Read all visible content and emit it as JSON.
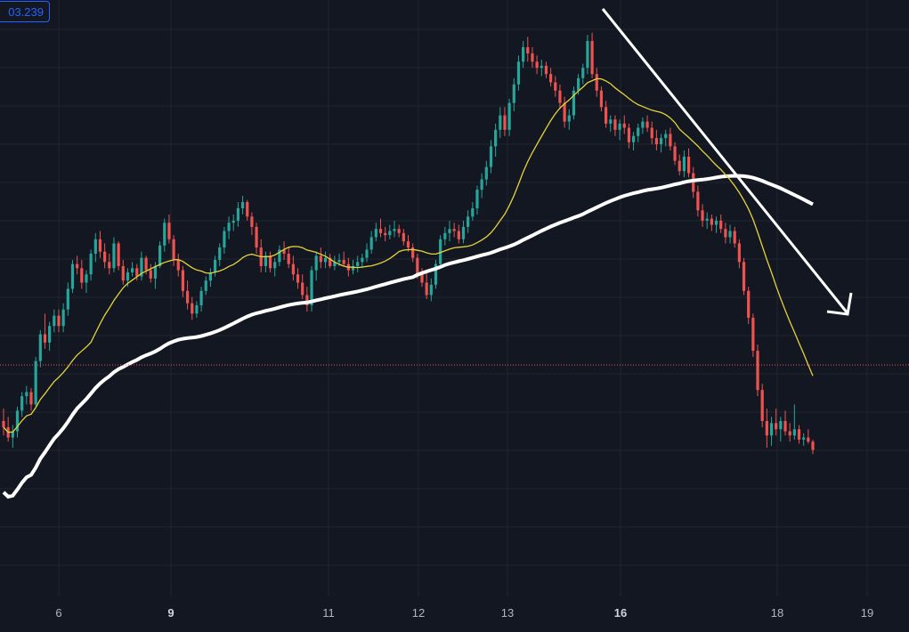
{
  "chart_data": {
    "type": "candlestick",
    "current_price_label": "03.239",
    "x_ticks": [
      {
        "label": "6",
        "bold": false
      },
      {
        "label": "9",
        "bold": true
      },
      {
        "label": "11",
        "bold": false
      },
      {
        "label": "12",
        "bold": false
      },
      {
        "label": "13",
        "bold": false
      },
      {
        "label": "16",
        "bold": true
      },
      {
        "label": "18",
        "bold": false
      },
      {
        "label": "19",
        "bold": false
      }
    ],
    "grid": true,
    "colors": {
      "background": "#131722",
      "grid": "#1f2430",
      "up": "#26a69a",
      "down": "#ef5350",
      "ma_fast": "#e6d23a",
      "ma_slow": "#ffffff",
      "drawing": "#ffffff",
      "price_line": "#ef5350",
      "price_tag": "#2962ff"
    },
    "series": [
      {
        "kind": "candles",
        "ohlc": [
          [
            7.2,
            7.8,
            6.5,
            6.9
          ],
          [
            6.9,
            7.4,
            6.2,
            6.4
          ],
          [
            6.4,
            7.0,
            5.9,
            6.7
          ],
          [
            6.7,
            7.9,
            6.4,
            7.7
          ],
          [
            7.7,
            8.6,
            7.4,
            8.4
          ],
          [
            8.4,
            8.9,
            8.0,
            8.6
          ],
          [
            8.6,
            8.8,
            7.7,
            8.0
          ],
          [
            8.0,
            10.3,
            7.9,
            10.1
          ],
          [
            10.1,
            11.6,
            9.8,
            11.4
          ],
          [
            11.4,
            12.4,
            10.7,
            11.0
          ],
          [
            11.0,
            12.0,
            10.6,
            11.8
          ],
          [
            11.8,
            12.6,
            11.5,
            12.3
          ],
          [
            12.3,
            12.6,
            11.5,
            11.8
          ],
          [
            11.8,
            12.9,
            11.5,
            12.6
          ],
          [
            12.6,
            13.9,
            12.3,
            13.6
          ],
          [
            13.6,
            15.0,
            13.4,
            14.8
          ],
          [
            14.8,
            15.2,
            14.3,
            14.6
          ],
          [
            14.6,
            15.0,
            13.6,
            13.9
          ],
          [
            13.9,
            14.5,
            13.4,
            14.3
          ],
          [
            14.3,
            15.5,
            14.0,
            15.3
          ],
          [
            15.3,
            16.3,
            14.9,
            16.0
          ],
          [
            16.0,
            16.4,
            15.1,
            15.4
          ],
          [
            15.4,
            15.8,
            14.6,
            14.9
          ],
          [
            14.9,
            15.3,
            14.3,
            14.6
          ],
          [
            14.6,
            16.1,
            14.4,
            15.8
          ],
          [
            15.8,
            15.9,
            14.5,
            14.7
          ],
          [
            14.7,
            15.0,
            13.8,
            14.0
          ],
          [
            14.0,
            14.6,
            13.7,
            14.4
          ],
          [
            14.4,
            14.9,
            14.2,
            14.6
          ],
          [
            14.6,
            14.8,
            14.0,
            14.2
          ],
          [
            14.2,
            15.4,
            14.0,
            15.1
          ],
          [
            15.1,
            15.2,
            14.3,
            14.5
          ],
          [
            14.5,
            14.8,
            13.9,
            14.1
          ],
          [
            14.1,
            14.9,
            13.6,
            14.7
          ],
          [
            14.7,
            15.9,
            14.6,
            15.7
          ],
          [
            15.7,
            17.0,
            15.4,
            16.8
          ],
          [
            16.8,
            17.2,
            15.8,
            16.0
          ],
          [
            16.0,
            16.2,
            14.7,
            15.0
          ],
          [
            15.0,
            15.3,
            14.2,
            14.5
          ],
          [
            14.5,
            14.7,
            13.2,
            13.5
          ],
          [
            13.5,
            14.0,
            12.6,
            12.9
          ],
          [
            12.9,
            13.2,
            12.1,
            12.4
          ],
          [
            12.4,
            13.0,
            12.2,
            12.8
          ],
          [
            12.8,
            13.7,
            12.5,
            13.5
          ],
          [
            13.5,
            14.2,
            13.3,
            14.0
          ],
          [
            14.0,
            14.6,
            13.7,
            14.4
          ],
          [
            14.4,
            15.2,
            14.2,
            15.0
          ],
          [
            15.0,
            15.8,
            14.7,
            15.6
          ],
          [
            15.6,
            16.6,
            15.3,
            16.4
          ],
          [
            16.4,
            17.1,
            16.0,
            16.8
          ],
          [
            16.8,
            17.2,
            16.4,
            16.9
          ],
          [
            16.9,
            17.8,
            16.6,
            17.5
          ],
          [
            17.5,
            18.1,
            17.2,
            17.8
          ],
          [
            17.8,
            17.9,
            16.9,
            17.1
          ],
          [
            17.1,
            17.3,
            16.2,
            16.6
          ],
          [
            16.6,
            16.8,
            15.3,
            15.6
          ],
          [
            15.6,
            16.0,
            14.4,
            14.7
          ],
          [
            14.7,
            15.4,
            14.4,
            15.2
          ],
          [
            15.2,
            15.4,
            14.4,
            14.6
          ],
          [
            14.6,
            15.1,
            14.2,
            14.9
          ],
          [
            14.9,
            15.7,
            14.7,
            15.5
          ],
          [
            15.5,
            15.9,
            15.0,
            15.3
          ],
          [
            15.3,
            15.6,
            14.6,
            14.8
          ],
          [
            14.8,
            15.2,
            14.0,
            14.3
          ],
          [
            14.3,
            14.6,
            13.6,
            13.9
          ],
          [
            13.9,
            14.3,
            13.1,
            13.3
          ],
          [
            13.3,
            13.7,
            12.5,
            12.8
          ],
          [
            12.8,
            14.7,
            12.5,
            14.5
          ],
          [
            14.5,
            15.4,
            14.0,
            15.2
          ],
          [
            15.2,
            15.6,
            14.6,
            14.9
          ],
          [
            14.9,
            15.4,
            14.6,
            15.1
          ],
          [
            15.1,
            15.3,
            14.6,
            14.7
          ],
          [
            14.7,
            15.2,
            14.5,
            14.9
          ],
          [
            14.9,
            15.3,
            14.7,
            15.0
          ],
          [
            15.0,
            15.4,
            14.7,
            14.8
          ],
          [
            14.8,
            15.1,
            14.2,
            14.5
          ],
          [
            14.5,
            15.0,
            14.3,
            14.7
          ],
          [
            14.7,
            15.2,
            14.4,
            14.9
          ],
          [
            14.9,
            15.3,
            14.6,
            15.1
          ],
          [
            15.1,
            15.8,
            14.9,
            15.5
          ],
          [
            15.5,
            16.4,
            15.3,
            16.1
          ],
          [
            16.1,
            16.8,
            15.9,
            16.5
          ],
          [
            16.5,
            17.0,
            16.1,
            16.3
          ],
          [
            16.3,
            16.6,
            15.9,
            16.2
          ],
          [
            16.2,
            16.7,
            16.0,
            16.4
          ],
          [
            16.4,
            16.9,
            16.1,
            16.5
          ],
          [
            16.5,
            16.7,
            16.1,
            16.3
          ],
          [
            16.3,
            16.5,
            15.7,
            15.9
          ],
          [
            15.9,
            16.2,
            15.4,
            15.6
          ],
          [
            15.6,
            15.8,
            14.9,
            15.1
          ],
          [
            15.1,
            15.3,
            14.1,
            14.3
          ],
          [
            14.3,
            14.6,
            13.7,
            13.9
          ],
          [
            13.9,
            14.4,
            13.1,
            13.3
          ],
          [
            13.3,
            14.1,
            13.0,
            13.8
          ],
          [
            13.8,
            15.0,
            13.6,
            14.8
          ],
          [
            14.8,
            16.2,
            14.6,
            16.0
          ],
          [
            16.0,
            16.6,
            15.7,
            16.3
          ],
          [
            16.3,
            16.9,
            15.9,
            16.5
          ],
          [
            16.5,
            16.8,
            16.1,
            16.4
          ],
          [
            16.4,
            16.7,
            15.8,
            16.0
          ],
          [
            16.0,
            16.9,
            15.8,
            16.6
          ],
          [
            16.6,
            17.4,
            16.3,
            17.1
          ],
          [
            17.1,
            17.8,
            16.9,
            17.5
          ],
          [
            17.5,
            18.6,
            17.2,
            18.4
          ],
          [
            18.4,
            19.2,
            18.0,
            18.9
          ],
          [
            18.9,
            19.8,
            18.6,
            19.5
          ],
          [
            19.5,
            20.8,
            19.2,
            20.5
          ],
          [
            20.5,
            21.6,
            20.0,
            21.3
          ],
          [
            21.3,
            22.4,
            20.9,
            22.0
          ],
          [
            22.0,
            22.4,
            21.0,
            21.3
          ],
          [
            21.3,
            22.8,
            21.0,
            22.6
          ],
          [
            22.6,
            23.8,
            22.2,
            23.5
          ],
          [
            23.5,
            24.9,
            23.2,
            24.6
          ],
          [
            24.6,
            25.6,
            24.3,
            25.3
          ],
          [
            25.3,
            25.8,
            24.6,
            25.0
          ],
          [
            25.0,
            25.3,
            24.3,
            24.6
          ],
          [
            24.6,
            24.9,
            24.0,
            24.3
          ],
          [
            24.3,
            24.7,
            23.9,
            24.4
          ],
          [
            24.4,
            24.6,
            23.8,
            24.0
          ],
          [
            24.0,
            24.3,
            23.4,
            23.6
          ],
          [
            23.6,
            23.9,
            22.9,
            23.2
          ],
          [
            23.2,
            23.5,
            22.3,
            22.6
          ],
          [
            22.6,
            22.9,
            21.4,
            21.7
          ],
          [
            21.7,
            22.3,
            21.3,
            22.0
          ],
          [
            22.0,
            23.4,
            21.8,
            23.2
          ],
          [
            23.2,
            24.0,
            23.0,
            23.8
          ],
          [
            23.8,
            24.5,
            23.5,
            24.3
          ],
          [
            24.3,
            25.9,
            24.0,
            25.6
          ],
          [
            25.6,
            26.0,
            23.8,
            24.0
          ],
          [
            24.0,
            24.3,
            22.9,
            23.2
          ],
          [
            23.2,
            23.4,
            22.2,
            22.4
          ],
          [
            22.4,
            22.7,
            21.4,
            21.6
          ],
          [
            21.6,
            22.0,
            21.2,
            21.8
          ],
          [
            21.8,
            22.0,
            21.0,
            21.3
          ],
          [
            21.3,
            21.8,
            20.8,
            21.6
          ],
          [
            21.6,
            22.0,
            21.1,
            21.4
          ],
          [
            21.4,
            21.6,
            20.4,
            20.7
          ],
          [
            20.7,
            21.2,
            20.3,
            21.0
          ],
          [
            21.0,
            21.6,
            20.7,
            21.4
          ],
          [
            21.4,
            21.9,
            21.1,
            21.7
          ],
          [
            21.7,
            22.0,
            21.2,
            21.4
          ],
          [
            21.4,
            21.7,
            20.6,
            20.9
          ],
          [
            20.9,
            21.3,
            20.3,
            20.6
          ],
          [
            20.6,
            21.1,
            20.2,
            20.9
          ],
          [
            20.9,
            21.3,
            20.5,
            21.1
          ],
          [
            21.1,
            21.4,
            20.3,
            20.5
          ],
          [
            20.5,
            20.7,
            19.6,
            19.8
          ],
          [
            19.8,
            20.1,
            19.1,
            19.3
          ],
          [
            19.3,
            20.3,
            19.0,
            20.0
          ],
          [
            20.0,
            20.4,
            19.0,
            19.2
          ],
          [
            19.2,
            19.5,
            18.0,
            18.3
          ],
          [
            18.3,
            18.6,
            17.1,
            17.4
          ],
          [
            17.4,
            17.7,
            16.6,
            16.9
          ],
          [
            16.9,
            17.3,
            16.5,
            17.0
          ],
          [
            17.0,
            17.2,
            16.4,
            16.7
          ],
          [
            16.7,
            17.1,
            16.3,
            16.9
          ],
          [
            16.9,
            17.2,
            16.3,
            16.5
          ],
          [
            16.5,
            16.8,
            15.8,
            16.1
          ],
          [
            16.1,
            16.7,
            15.8,
            16.4
          ],
          [
            16.4,
            16.6,
            15.6,
            15.8
          ],
          [
            15.8,
            16.0,
            14.6,
            14.9
          ],
          [
            14.9,
            15.1,
            13.3,
            13.5
          ],
          [
            13.5,
            13.7,
            11.9,
            12.2
          ],
          [
            12.2,
            12.4,
            10.3,
            10.6
          ],
          [
            10.6,
            10.9,
            8.4,
            8.7
          ],
          [
            8.7,
            9.0,
            6.9,
            7.2
          ],
          [
            7.2,
            7.8,
            5.9,
            6.5
          ],
          [
            6.5,
            7.4,
            6.0,
            7.1
          ],
          [
            7.1,
            7.8,
            6.5,
            6.8
          ],
          [
            6.8,
            7.4,
            6.2,
            7.2
          ],
          [
            7.2,
            7.7,
            6.5,
            6.7
          ],
          [
            6.7,
            7.1,
            6.2,
            6.5
          ],
          [
            6.5,
            8.0,
            6.3,
            6.8
          ],
          [
            6.8,
            7.0,
            6.1,
            6.3
          ],
          [
            6.3,
            6.6,
            6.0,
            6.4
          ],
          [
            6.4,
            6.8,
            6.1,
            6.2
          ],
          [
            6.2,
            6.3,
            5.6,
            5.8
          ]
        ]
      }
    ]
  }
}
